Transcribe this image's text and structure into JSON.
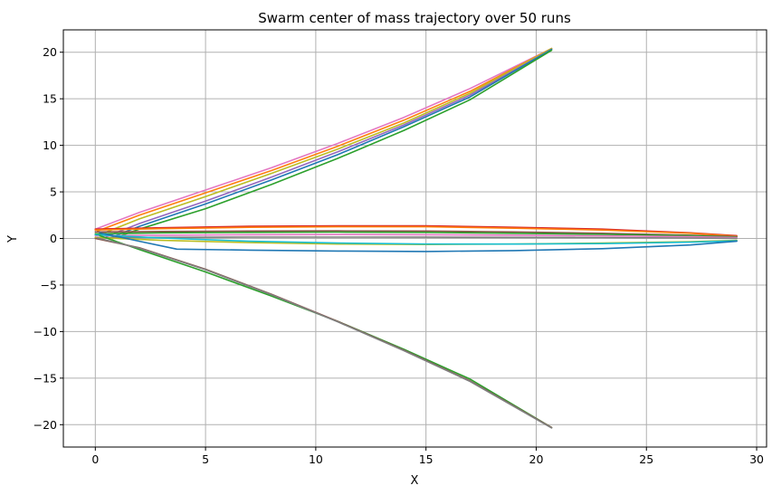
{
  "chart_data": {
    "type": "line",
    "title": "Swarm center of mass trajectory over 50 runs",
    "xlabel": "X",
    "ylabel": "Y",
    "xlim": [
      -1.45,
      30.45
    ],
    "ylim": [
      -22.4,
      22.4
    ],
    "xticks": [
      0,
      5,
      10,
      15,
      20,
      25,
      30
    ],
    "yticks": [
      -20,
      -15,
      -10,
      -5,
      0,
      5,
      10,
      15,
      20
    ],
    "xtick_labels": [
      "0",
      "5",
      "10",
      "15",
      "20",
      "25",
      "30"
    ],
    "ytick_labels": [
      "−20",
      "−15",
      "−10",
      "−5",
      "0",
      "5",
      "10",
      "15",
      "20"
    ],
    "grid": true,
    "legend": "none",
    "series": [
      {
        "color": "#e377c2",
        "x": [
          0,
          2,
          5,
          8,
          11,
          14,
          17,
          20.7
        ],
        "y": [
          1.0,
          2.8,
          5.2,
          7.6,
          10.2,
          13.0,
          16.1,
          20.4
        ]
      },
      {
        "color": "#ff7f0e",
        "x": [
          0.1,
          2,
          5,
          8,
          11,
          14,
          17,
          20.7
        ],
        "y": [
          0.8,
          2.5,
          4.9,
          7.3,
          9.9,
          12.7,
          15.8,
          20.4
        ]
      },
      {
        "color": "#bcbd22",
        "x": [
          0.3,
          2,
          5,
          8,
          11,
          14,
          17,
          20.7
        ],
        "y": [
          0.5,
          2.1,
          4.5,
          7.0,
          9.6,
          12.4,
          15.6,
          20.4
        ]
      },
      {
        "color": "#9467bd",
        "x": [
          0.5,
          2,
          5,
          8,
          11,
          14,
          17,
          20.7
        ],
        "y": [
          0.2,
          1.6,
          4.0,
          6.6,
          9.3,
          12.2,
          15.4,
          20.3
        ]
      },
      {
        "color": "#1f77b4",
        "x": [
          0.7,
          2,
          5,
          8,
          11,
          14,
          17,
          20.7
        ],
        "y": [
          0.1,
          1.3,
          3.7,
          6.3,
          9.0,
          12.0,
          15.2,
          20.3
        ]
      },
      {
        "color": "#2ca02c",
        "x": [
          0.8,
          2,
          5,
          8,
          11,
          14,
          17,
          20.7
        ],
        "y": [
          0.0,
          1.0,
          3.2,
          5.8,
          8.6,
          11.6,
          14.9,
          20.2
        ]
      },
      {
        "color": "#d62728",
        "x": [
          0,
          3,
          7,
          11,
          15,
          19,
          23,
          27,
          29.1
        ],
        "y": [
          1.0,
          1.15,
          1.3,
          1.35,
          1.35,
          1.2,
          1.0,
          0.6,
          0.3
        ]
      },
      {
        "color": "#ff7f0e",
        "x": [
          0,
          3,
          7,
          11,
          15,
          19,
          23,
          27,
          29.1
        ],
        "y": [
          0.9,
          1.05,
          1.2,
          1.25,
          1.25,
          1.1,
          0.9,
          0.55,
          0.25
        ]
      },
      {
        "color": "#8c564b",
        "x": [
          0,
          3,
          7,
          11,
          15,
          19,
          23,
          27,
          29.1
        ],
        "y": [
          0.7,
          0.75,
          0.8,
          0.82,
          0.8,
          0.7,
          0.55,
          0.35,
          0.2
        ]
      },
      {
        "color": "#2ca02c",
        "x": [
          0,
          3,
          7,
          11,
          15,
          19,
          23,
          27,
          29.1
        ],
        "y": [
          0.5,
          0.6,
          0.65,
          0.68,
          0.65,
          0.55,
          0.45,
          0.3,
          0.15
        ]
      },
      {
        "color": "#e377c2",
        "x": [
          0,
          3,
          7,
          11,
          15,
          19,
          23,
          27,
          29.1
        ],
        "y": [
          0.3,
          0.35,
          0.4,
          0.42,
          0.4,
          0.35,
          0.28,
          0.18,
          0.1
        ]
      },
      {
        "color": "#7f7f7f",
        "x": [
          0,
          3,
          7,
          11,
          15,
          19,
          23,
          27,
          29.1
        ],
        "y": [
          0.1,
          0.12,
          0.15,
          0.15,
          0.14,
          0.12,
          0.1,
          0.05,
          0.0
        ]
      },
      {
        "color": "#bcbd22",
        "x": [
          0,
          3,
          7,
          11,
          15,
          19,
          23,
          27,
          29.1
        ],
        "y": [
          0.1,
          -0.2,
          -0.45,
          -0.6,
          -0.65,
          -0.6,
          -0.5,
          -0.35,
          -0.2
        ]
      },
      {
        "color": "#17becf",
        "x": [
          0,
          3,
          7,
          11,
          15,
          19,
          23,
          27,
          29.1
        ],
        "y": [
          0.4,
          0.05,
          -0.3,
          -0.5,
          -0.6,
          -0.6,
          -0.55,
          -0.4,
          -0.25
        ]
      },
      {
        "color": "#1f77b4",
        "x": [
          0.2,
          2,
          3.7,
          7,
          11,
          15,
          19,
          23,
          27,
          29.1
        ],
        "y": [
          0.6,
          -0.3,
          -1.15,
          -1.25,
          -1.35,
          -1.4,
          -1.3,
          -1.1,
          -0.7,
          -0.3
        ]
      },
      {
        "color": "#2ca02c",
        "x": [
          0.2,
          2,
          5,
          8,
          11,
          14,
          17,
          20.7
        ],
        "y": [
          0.3,
          -1.2,
          -3.6,
          -6.2,
          -8.9,
          -11.9,
          -15.1,
          -20.3
        ]
      },
      {
        "color": "#8c564b",
        "x": [
          0,
          2,
          5,
          8,
          11,
          14,
          17,
          20.7
        ],
        "y": [
          0.0,
          -1.0,
          -3.3,
          -6.0,
          -8.9,
          -12.0,
          -15.3,
          -20.3
        ]
      },
      {
        "color": "#7f7f7f",
        "x": [
          0.1,
          2,
          5,
          8,
          11,
          14,
          17,
          20.7
        ],
        "y": [
          0.05,
          -1.05,
          -3.35,
          -6.05,
          -8.95,
          -12.05,
          -15.35,
          -20.35
        ]
      }
    ]
  }
}
